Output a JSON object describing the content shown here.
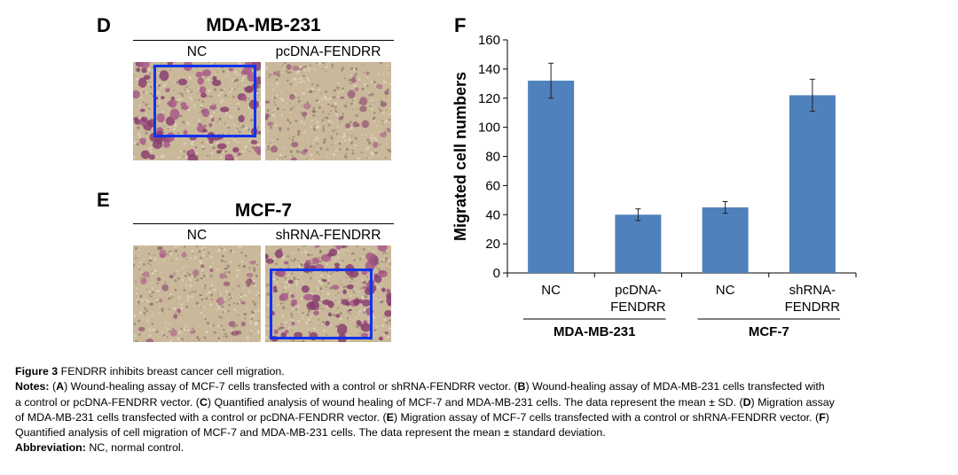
{
  "panel_d": {
    "letter": "D",
    "title": "MDA-MB-231",
    "left_label": "NC",
    "right_label": "pcDNA-FENDRR"
  },
  "panel_e": {
    "letter": "E",
    "title": "MCF-7",
    "left_label": "NC",
    "right_label": "shRNA-FENDRR"
  },
  "panel_f": {
    "letter": "F"
  },
  "chart_data": {
    "type": "bar",
    "categories": [
      [
        "NC"
      ],
      [
        "pcDNA-",
        "FENDRR"
      ],
      [
        "NC"
      ],
      [
        "shRNA-",
        "FENDRR"
      ]
    ],
    "values": [
      132,
      40,
      45,
      122
    ],
    "error_bars": [
      12,
      4,
      4,
      11
    ],
    "groups": [
      {
        "name": "MDA-MB-231",
        "categories": [
          0,
          1
        ]
      },
      {
        "name": "MCF-7",
        "categories": [
          2,
          3
        ]
      }
    ],
    "ylabel": "Migrated cell numbers",
    "ylim": [
      0,
      160
    ],
    "yticks": [
      0,
      20,
      40,
      60,
      80,
      100,
      120,
      140,
      160
    ],
    "grid": false,
    "bar_color": "#4f81bd"
  },
  "caption": {
    "figure_label": "Figure 3",
    "figure_title": "FENDRR inhibits breast cancer cell migration.",
    "notes_label": "Notes:",
    "notes_lines": [
      [
        [
          "(",
          false
        ],
        [
          "A",
          true
        ],
        [
          ") Wound-healing assay of MCF-7 cells transfected with a control or shRNA-FENDRR vector. (",
          false
        ],
        [
          "B",
          true
        ],
        [
          ") Wound-healing assay of MDA-MB-231 cells transfected with",
          false
        ]
      ],
      [
        [
          "a control or pcDNA-FENDRR vector. (",
          false
        ],
        [
          "C",
          true
        ],
        [
          ") Quantified analysis of wound healing of MCF-7 and MDA-MB-231 cells. The data represent the mean ± SD. (",
          false
        ],
        [
          "D",
          true
        ],
        [
          ") Migration assay",
          false
        ]
      ],
      [
        [
          "of MDA-MB-231 cells transfected with a control or pcDNA-FENDRR vector. (",
          false
        ],
        [
          "E",
          true
        ],
        [
          ") Migration assay of MCF-7 cells transfected with a control or shRNA-FENDRR vector. (",
          false
        ],
        [
          "F",
          true
        ],
        [
          ")",
          false
        ]
      ],
      [
        [
          "Quantified analysis of cell migration of MCF-7 and MDA-MB-231 cells. The data represent the mean ± standard deviation.",
          false
        ]
      ]
    ],
    "abbreviation_label": "Abbreviation:",
    "abbreviation_text": "NC, normal control."
  }
}
